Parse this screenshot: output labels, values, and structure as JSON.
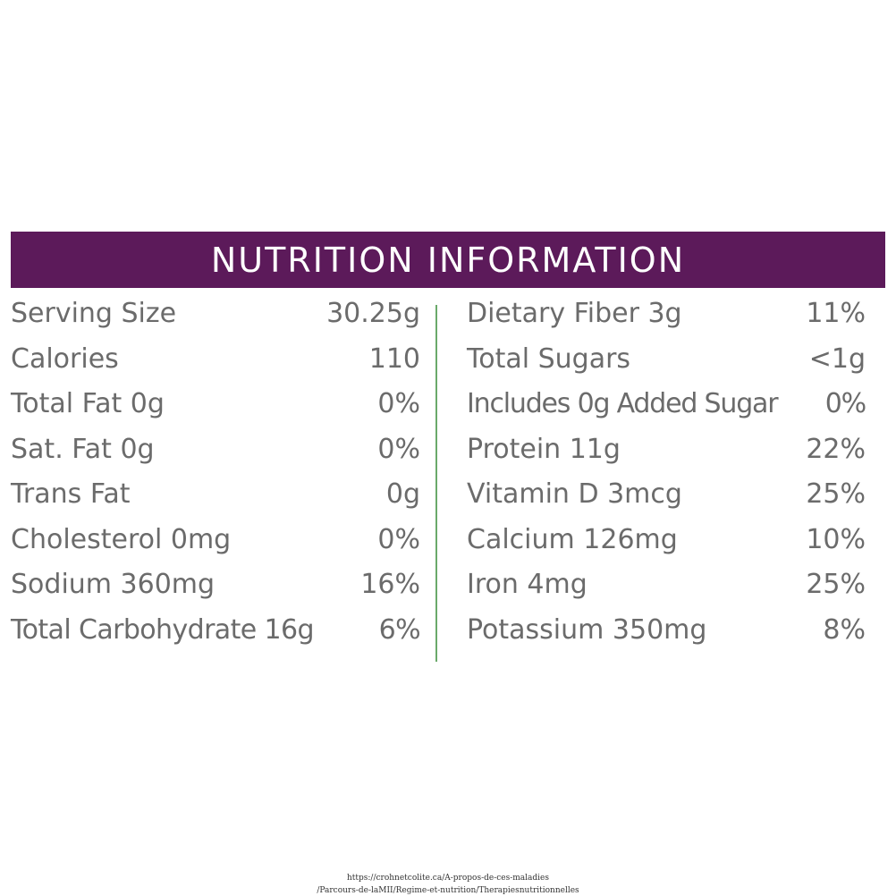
{
  "banner": {
    "title": "NUTRITION INFORMATION"
  },
  "left": [
    {
      "label": "Serving Size",
      "value": "30.25g"
    },
    {
      "label": "Calories",
      "value": "110"
    },
    {
      "label": "Total Fat 0g",
      "value": "0%"
    },
    {
      "label": "Sat. Fat 0g",
      "value": "0%"
    },
    {
      "label": "Trans Fat",
      "value": "0g"
    },
    {
      "label": "Cholesterol 0mg",
      "value": "0%"
    },
    {
      "label": "Sodium 360mg",
      "value": "16%"
    },
    {
      "label": "Total Carbohydrate 16g",
      "value": "6%"
    }
  ],
  "right": [
    {
      "label": "Dietary Fiber 3g",
      "value": "11%"
    },
    {
      "label": "Total Sugars",
      "value": "<1g"
    },
    {
      "label": "Includes 0g Added Sugar",
      "value": "0%"
    },
    {
      "label": "Protein 11g",
      "value": "22%"
    },
    {
      "label": "Vitamin D 3mcg",
      "value": "25%"
    },
    {
      "label": "Calcium 126mg",
      "value": "10%"
    },
    {
      "label": "Iron 4mg",
      "value": "25%"
    },
    {
      "label": "Potassium 350mg",
      "value": "8%"
    }
  ],
  "footer": {
    "line1": "https://crohnetcolite.ca/A-propos-de-ces-maladies",
    "line2": "/Parcours-de-laMII/Regime-et-nutrition/Therapiesnutritionnelles"
  },
  "colors": {
    "banner": "#5c1a5a",
    "divider": "#6aa96a",
    "text": "#6b6b6b"
  }
}
